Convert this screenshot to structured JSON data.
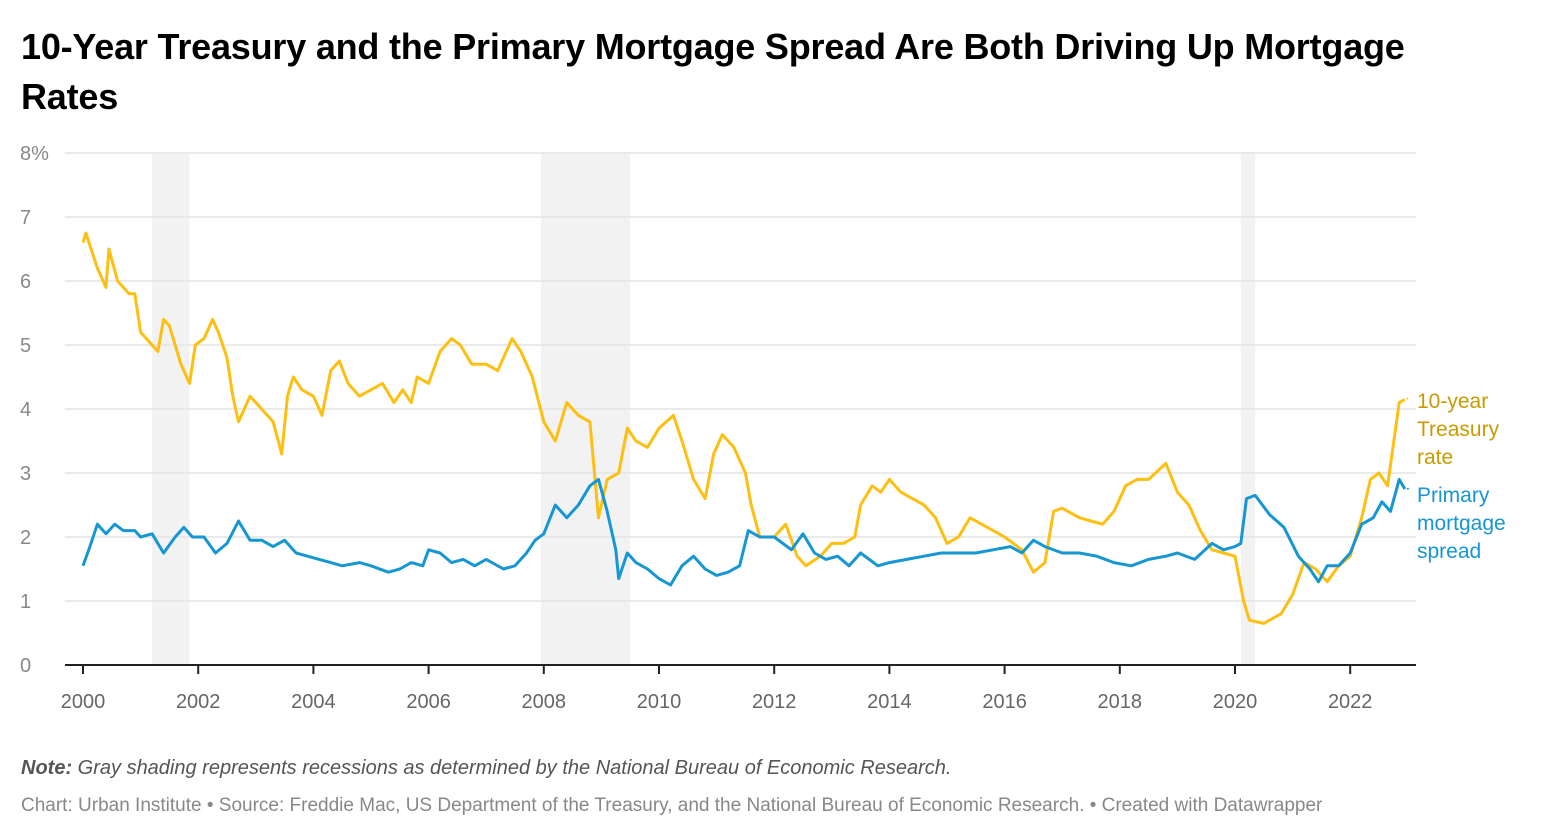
{
  "title": "10-Year Treasury and the Primary Mortgage Spread Are Both Driving Up Mortgage Rates",
  "note_label": "Note:",
  "note_text": " Gray shading represents recessions as determined by the National Bureau of Economic Research.",
  "source": "Chart: Urban Institute • Source: Freddie Mac, US Department of the Treasury, and the National Bureau of Economic Research. • Created with Datawrapper",
  "chart_data": {
    "type": "line",
    "xlim": [
      2000,
      2023.1
    ],
    "ylim": [
      0,
      8
    ],
    "grid": true,
    "y_ticks": [
      0,
      1,
      2,
      3,
      4,
      5,
      6,
      7,
      8
    ],
    "y_tick_labels": [
      "0",
      "1",
      "2",
      "3",
      "4",
      "5",
      "6",
      "7",
      "8%"
    ],
    "x_ticks": [
      2000,
      2002,
      2004,
      2006,
      2008,
      2010,
      2012,
      2014,
      2016,
      2018,
      2020,
      2022
    ],
    "x_tick_labels": [
      "2000",
      "2002",
      "2004",
      "2006",
      "2008",
      "2010",
      "2012",
      "2014",
      "2016",
      "2018",
      "2020",
      "2022"
    ],
    "recessions": [
      [
        2001.2,
        2001.85
      ],
      [
        2007.95,
        2009.5
      ],
      [
        2020.1,
        2020.35
      ]
    ],
    "legend_placement": "inline-right",
    "series": [
      {
        "name": "10-year Treasury rate",
        "label_lines": [
          "10-year",
          "Treasury",
          "rate"
        ],
        "color": "#fdbf11",
        "label_color": "#c99a00",
        "x": [
          2000.0,
          2000.05,
          2000.25,
          2000.4,
          2000.45,
          2000.6,
          2000.8,
          2000.9,
          2001.0,
          2001.2,
          2001.3,
          2001.4,
          2001.5,
          2001.7,
          2001.85,
          2001.95,
          2002.1,
          2002.25,
          2002.35,
          2002.5,
          2002.6,
          2002.7,
          2002.8,
          2002.9,
          2003.1,
          2003.3,
          2003.45,
          2003.55,
          2003.65,
          2003.8,
          2004.0,
          2004.15,
          2004.3,
          2004.45,
          2004.6,
          2004.8,
          2005.0,
          2005.2,
          2005.4,
          2005.55,
          2005.7,
          2005.8,
          2006.0,
          2006.2,
          2006.4,
          2006.55,
          2006.75,
          2007.0,
          2007.2,
          2007.45,
          2007.6,
          2007.8,
          2008.0,
          2008.2,
          2008.4,
          2008.6,
          2008.8,
          2008.95,
          2009.1,
          2009.3,
          2009.45,
          2009.6,
          2009.8,
          2010.0,
          2010.25,
          2010.4,
          2010.6,
          2010.8,
          2010.95,
          2011.1,
          2011.3,
          2011.5,
          2011.6,
          2011.75,
          2012.0,
          2012.2,
          2012.4,
          2012.55,
          2012.8,
          2013.0,
          2013.2,
          2013.4,
          2013.5,
          2013.7,
          2013.85,
          2014.0,
          2014.2,
          2014.4,
          2014.6,
          2014.8,
          2015.0,
          2015.2,
          2015.4,
          2015.6,
          2015.8,
          2016.0,
          2016.3,
          2016.5,
          2016.7,
          2016.85,
          2017.0,
          2017.3,
          2017.5,
          2017.7,
          2017.9,
          2018.1,
          2018.3,
          2018.5,
          2018.8,
          2019.0,
          2019.2,
          2019.4,
          2019.6,
          2019.8,
          2020.0,
          2020.15,
          2020.25,
          2020.5,
          2020.8,
          2021.0,
          2021.2,
          2021.4,
          2021.6,
          2021.8,
          2022.0,
          2022.2,
          2022.35,
          2022.5,
          2022.65,
          2022.85,
          2022.95
        ],
        "values": [
          6.6,
          6.75,
          6.2,
          5.9,
          6.5,
          6.0,
          5.8,
          5.8,
          5.2,
          5.0,
          4.9,
          5.4,
          5.3,
          4.7,
          4.4,
          5.0,
          5.1,
          5.4,
          5.2,
          4.8,
          4.2,
          3.8,
          4.0,
          4.2,
          4.0,
          3.8,
          3.3,
          4.2,
          4.5,
          4.3,
          4.2,
          3.9,
          4.6,
          4.75,
          4.4,
          4.2,
          4.3,
          4.4,
          4.1,
          4.3,
          4.1,
          4.5,
          4.4,
          4.9,
          5.1,
          5.0,
          4.7,
          4.7,
          4.6,
          5.1,
          4.9,
          4.5,
          3.8,
          3.5,
          4.1,
          3.9,
          3.8,
          2.3,
          2.9,
          3.0,
          3.7,
          3.5,
          3.4,
          3.7,
          3.9,
          3.5,
          2.9,
          2.6,
          3.3,
          3.6,
          3.4,
          3.0,
          2.5,
          2.0,
          2.0,
          2.2,
          1.7,
          1.55,
          1.7,
          1.9,
          1.9,
          2.0,
          2.5,
          2.8,
          2.7,
          2.9,
          2.7,
          2.6,
          2.5,
          2.3,
          1.9,
          2.0,
          2.3,
          2.2,
          2.1,
          2.0,
          1.8,
          1.45,
          1.6,
          2.4,
          2.45,
          2.3,
          2.25,
          2.2,
          2.4,
          2.8,
          2.9,
          2.9,
          3.15,
          2.7,
          2.5,
          2.1,
          1.8,
          1.75,
          1.7,
          1.0,
          0.7,
          0.65,
          0.8,
          1.1,
          1.6,
          1.5,
          1.3,
          1.55,
          1.7,
          2.3,
          2.9,
          3.0,
          2.8,
          4.1,
          4.15
        ]
      },
      {
        "name": "Primary mortgage spread",
        "label_lines": [
          "Primary",
          "mortgage",
          "spread"
        ],
        "color": "#1696d2",
        "label_color": "#1696d2",
        "x": [
          2000.0,
          2000.1,
          2000.25,
          2000.4,
          2000.55,
          2000.7,
          2000.9,
          2001.0,
          2001.2,
          2001.4,
          2001.6,
          2001.75,
          2001.9,
          2002.1,
          2002.3,
          2002.5,
          2002.7,
          2002.9,
          2003.1,
          2003.3,
          2003.5,
          2003.7,
          2003.9,
          2004.1,
          2004.3,
          2004.5,
          2004.8,
          2005.0,
          2005.3,
          2005.5,
          2005.7,
          2005.9,
          2006.0,
          2006.2,
          2006.4,
          2006.6,
          2006.8,
          2007.0,
          2007.3,
          2007.5,
          2007.7,
          2007.85,
          2008.0,
          2008.2,
          2008.4,
          2008.6,
          2008.8,
          2008.95,
          2009.1,
          2009.25,
          2009.3,
          2009.45,
          2009.6,
          2009.8,
          2010.0,
          2010.2,
          2010.4,
          2010.6,
          2010.8,
          2011.0,
          2011.2,
          2011.4,
          2011.55,
          2011.75,
          2012.0,
          2012.3,
          2012.5,
          2012.7,
          2012.9,
          2013.1,
          2013.3,
          2013.5,
          2013.8,
          2014.0,
          2014.3,
          2014.6,
          2014.9,
          2015.2,
          2015.5,
          2015.8,
          2016.1,
          2016.3,
          2016.5,
          2016.7,
          2017.0,
          2017.3,
          2017.6,
          2017.9,
          2018.2,
          2018.5,
          2018.8,
          2019.0,
          2019.3,
          2019.6,
          2019.8,
          2020.0,
          2020.1,
          2020.2,
          2020.35,
          2020.6,
          2020.85,
          2021.1,
          2021.3,
          2021.45,
          2021.6,
          2021.8,
          2022.0,
          2022.2,
          2022.4,
          2022.55,
          2022.7,
          2022.85,
          2022.95
        ],
        "values": [
          1.55,
          1.8,
          2.2,
          2.05,
          2.2,
          2.1,
          2.1,
          2.0,
          2.05,
          1.75,
          2.0,
          2.15,
          2.0,
          2.0,
          1.75,
          1.9,
          2.25,
          1.95,
          1.95,
          1.85,
          1.95,
          1.75,
          1.7,
          1.65,
          1.6,
          1.55,
          1.6,
          1.55,
          1.45,
          1.5,
          1.6,
          1.55,
          1.8,
          1.75,
          1.6,
          1.65,
          1.55,
          1.65,
          1.5,
          1.55,
          1.75,
          1.95,
          2.05,
          2.5,
          2.3,
          2.5,
          2.8,
          2.9,
          2.4,
          1.8,
          1.35,
          1.75,
          1.6,
          1.5,
          1.35,
          1.25,
          1.55,
          1.7,
          1.5,
          1.4,
          1.45,
          1.55,
          2.1,
          2.0,
          2.0,
          1.8,
          2.05,
          1.75,
          1.65,
          1.7,
          1.55,
          1.75,
          1.55,
          1.6,
          1.65,
          1.7,
          1.75,
          1.75,
          1.75,
          1.8,
          1.85,
          1.75,
          1.95,
          1.85,
          1.75,
          1.75,
          1.7,
          1.6,
          1.55,
          1.65,
          1.7,
          1.75,
          1.65,
          1.9,
          1.8,
          1.85,
          1.9,
          2.6,
          2.65,
          2.35,
          2.15,
          1.7,
          1.5,
          1.3,
          1.55,
          1.55,
          1.75,
          2.2,
          2.3,
          2.55,
          2.4,
          2.9,
          2.75
        ]
      }
    ]
  }
}
